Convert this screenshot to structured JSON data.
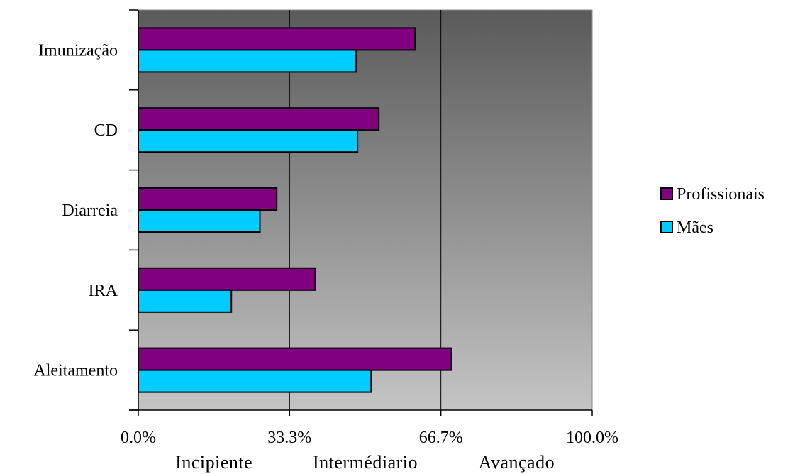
{
  "colors": {
    "profissionais": "#800080",
    "maes": "#00CCFF",
    "plot_bg_top": "#5a5a5a",
    "plot_bg_bottom": "#c4c4c4",
    "gridline": "#000000"
  },
  "chart_data": {
    "type": "bar",
    "orientation": "horizontal",
    "categories": [
      "Imunização",
      "CD",
      "Diarreia",
      "IRA",
      "Aleitamento"
    ],
    "series": [
      {
        "name": "Profissionais",
        "values": [
          0.61,
          0.53,
          0.305,
          0.39,
          0.69
        ]
      },
      {
        "name": "Mães",
        "values": [
          0.48,
          0.483,
          0.268,
          0.205,
          0.513
        ]
      }
    ],
    "xlim": [
      0,
      1
    ],
    "x_ticks": [
      0,
      0.3333,
      0.6667,
      1
    ],
    "x_tick_labels": [
      "0.0%",
      "33.3%",
      "66.7%",
      "100.0%"
    ],
    "zone_labels": [
      "Incipiente",
      "Intermédiario",
      "Avançado"
    ],
    "grid": "vertical",
    "legend_position": "right"
  }
}
